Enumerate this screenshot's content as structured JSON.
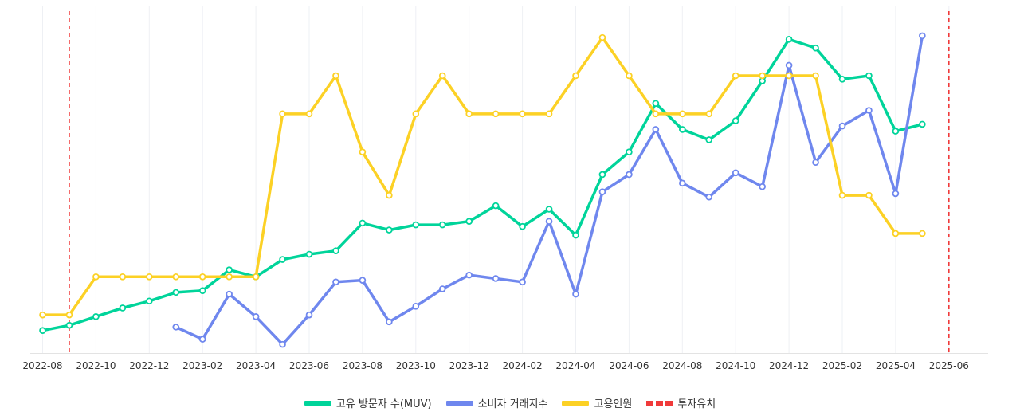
{
  "chart_data": {
    "type": "line",
    "title": "",
    "xlabel": "",
    "ylabel": "",
    "x": [
      "2022-08",
      "2022-09",
      "2022-10",
      "2022-11",
      "2022-12",
      "2023-01",
      "2023-02",
      "2023-03",
      "2023-04",
      "2023-05",
      "2023-06",
      "2023-07",
      "2023-08",
      "2023-09",
      "2023-10",
      "2023-11",
      "2023-12",
      "2024-01",
      "2024-02",
      "2024-03",
      "2024-04",
      "2024-05",
      "2024-06",
      "2024-07",
      "2024-08",
      "2024-09",
      "2024-10",
      "2024-11",
      "2024-12",
      "2025-01",
      "2025-02",
      "2025-03",
      "2025-04",
      "2025-05",
      "2025-06"
    ],
    "tick_labels": [
      "2022-08",
      "2022-10",
      "2022-12",
      "2023-02",
      "2023-04",
      "2023-06",
      "2023-08",
      "2023-10",
      "2023-12",
      "2024-02",
      "2024-04",
      "2024-06",
      "2024-08",
      "2024-10",
      "2024-12",
      "2025-02",
      "2025-04",
      "2025-06"
    ],
    "ylim": [
      0,
      100
    ],
    "grid": true,
    "legend_position": "bottom-center",
    "series": [
      {
        "name": "고유 방문자 수(MUV)",
        "color": "#00d49a",
        "values": [
          6.5,
          8,
          10.5,
          13,
          15,
          17.5,
          18,
          24,
          22,
          27,
          28.5,
          29.5,
          37.5,
          35.5,
          37,
          37,
          38,
          42.5,
          36.5,
          41.5,
          34,
          51.5,
          58,
          72,
          64.5,
          61.5,
          67,
          78.5,
          90.5,
          88,
          79,
          80,
          64,
          66,
          null
        ]
      },
      {
        "name": "소비자 거래지수",
        "color": "#6f87ee",
        "values": [
          null,
          null,
          null,
          null,
          null,
          7.5,
          4,
          17,
          10.5,
          2.5,
          11,
          20.5,
          21,
          9,
          13.5,
          18.5,
          22.5,
          21.5,
          20.5,
          38,
          17,
          46.5,
          51.5,
          64.5,
          49,
          45,
          52,
          48,
          83,
          55,
          65.5,
          70,
          46,
          91.5,
          null
        ]
      },
      {
        "name": "고용인원",
        "color": "#fcd125",
        "values": [
          11,
          11,
          22,
          22,
          22,
          22,
          22,
          22,
          22,
          69,
          69,
          80,
          58,
          45.5,
          69,
          80,
          69,
          69,
          69,
          69,
          80,
          91,
          80,
          69,
          69,
          69,
          80,
          80,
          80,
          80,
          45.5,
          45.5,
          34.5,
          34.5,
          null
        ]
      }
    ],
    "investment_markers": {
      "name": "투자유치",
      "color": "#f03a3a",
      "x": [
        "2022-09",
        "2025-06"
      ]
    }
  }
}
